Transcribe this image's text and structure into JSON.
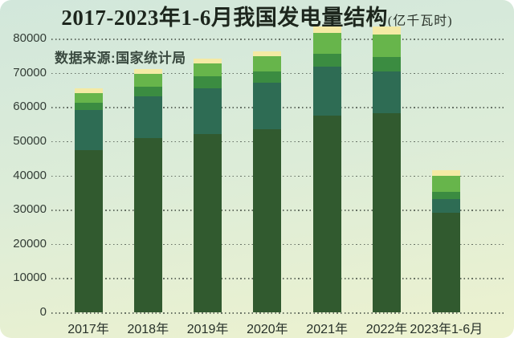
{
  "header": {
    "title": "2017-2023年1-6月我国发电量结构",
    "title_unit": "(亿千瓦时)",
    "source_note": "数据来源:国家统计局"
  },
  "colors": {
    "background_top": "#d2e7db",
    "background_bottom": "#edf2cf",
    "grid_dots": "#485248",
    "title_text": "#1d261d",
    "source_text": "#3a4a40",
    "axis_label": "#333d36"
  },
  "chart_data": {
    "type": "bar",
    "stacked": true,
    "title": "2017-2023年1-6月我国发电量结构(亿千瓦时)",
    "subtitle": "数据来源:国家统计局",
    "xlabel": "",
    "ylabel": "",
    "ylim": [
      0,
      80000
    ],
    "ytick_interval": 10000,
    "yticks": [
      0,
      10000,
      20000,
      30000,
      40000,
      50000,
      60000,
      70000,
      80000
    ],
    "grid": "dotted horizontal lines, incl. baseline",
    "legend": "none shown",
    "values_note": "no data labels printed; values estimated from gridlines, unit 亿千瓦时",
    "categories": [
      "2017年",
      "2018年",
      "2019年",
      "2020年",
      "2021年",
      "2022年",
      "2023年1-6月"
    ],
    "series": [
      {
        "name": "dark-green-bottom-segment",
        "color": "#315a2f",
        "values": [
          47300,
          51000,
          52000,
          53400,
          57600,
          58200,
          29100
        ]
      },
      {
        "name": "teal-green-segment",
        "color": "#2e6c54",
        "values": [
          11800,
          12200,
          13500,
          13600,
          14100,
          12200,
          3900
        ]
      },
      {
        "name": "medium-green-segment",
        "color": "#3b8c41",
        "values": [
          2100,
          2700,
          3600,
          3400,
          3800,
          4300,
          2300
        ]
      },
      {
        "name": "bright-green-segment",
        "color": "#67b54b",
        "values": [
          2800,
          3800,
          3700,
          4500,
          6100,
          6600,
          4500
        ]
      },
      {
        "name": "pale-yellow-top-segment",
        "color": "#f4eaa4",
        "values": [
          1400,
          1400,
          1300,
          1400,
          1900,
          2300,
          1700
        ]
      }
    ],
    "stack_totals_estimate": [
      65400,
      71100,
      74100,
      76300,
      83500,
      83600,
      41500
    ]
  }
}
